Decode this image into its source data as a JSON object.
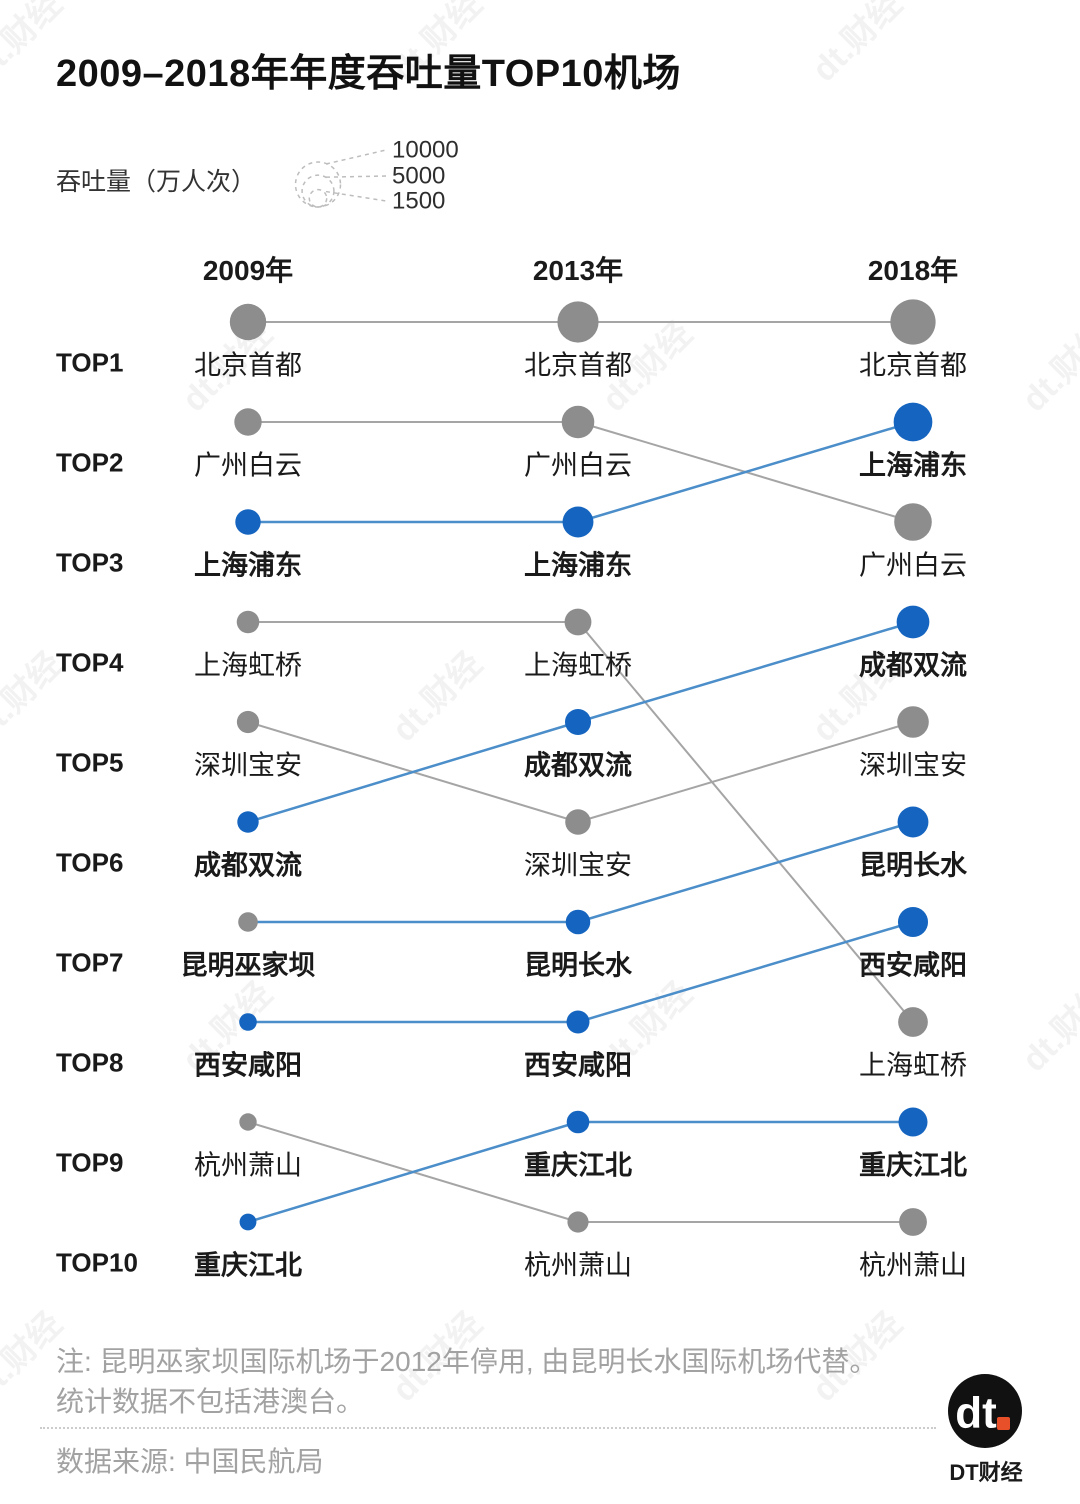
{
  "title": "2009–2018年年度吞吐量TOP10机场",
  "watermark_text": "dt.财经",
  "colors": {
    "dot_blue": "#1565c0",
    "dot_gray": "#8d8d8d",
    "line_blue": "#4b8ec9",
    "line_gray": "#a5a5a5",
    "text_dark": "#1a1a1a",
    "text_muted": "#a2a2a2",
    "legend_stroke": "#bdbdbd",
    "logo_orange": "#e8502a"
  },
  "chart_data": {
    "type": "scatter",
    "subtype": "bump-rank-chart",
    "title": "2009–2018年年度吞吐量TOP10机场",
    "size_legend": {
      "label": "吞吐量（万人次）",
      "values": [
        10000,
        5000,
        1500
      ]
    },
    "columns": [
      "2009年",
      "2013年",
      "2018年"
    ],
    "rank_labels": [
      "TOP1",
      "TOP2",
      "TOP3",
      "TOP4",
      "TOP5",
      "TOP6",
      "TOP7",
      "TOP8",
      "TOP9",
      "TOP10"
    ],
    "series": [
      {
        "key": "beijing-capital",
        "names": [
          "北京首都",
          "北京首都",
          "北京首都"
        ],
        "ranks": [
          1,
          1,
          1
        ],
        "values": [
          6537,
          8371,
          10098
        ],
        "color": "gray"
      },
      {
        "key": "guangzhou-baiyun",
        "names": [
          "广州白云",
          "广州白云",
          "广州白云"
        ],
        "ranks": [
          2,
          2,
          3
        ],
        "values": [
          3705,
          5245,
          6974
        ],
        "color": "gray"
      },
      {
        "key": "shanghai-pudong",
        "names": [
          "上海浦东",
          "上海浦东",
          "上海浦东"
        ],
        "ranks": [
          3,
          3,
          2
        ],
        "values": [
          3192,
          4719,
          7405
        ],
        "color": "blue"
      },
      {
        "key": "shanghai-hongqiao",
        "names": [
          "上海虹桥",
          "上海虹桥",
          "上海虹桥"
        ],
        "ranks": [
          4,
          4,
          8
        ],
        "values": [
          2508,
          3560,
          4363
        ],
        "color": "gray"
      },
      {
        "key": "shenzhen-baoan",
        "names": [
          "深圳宝安",
          "深圳宝安",
          "深圳宝安"
        ],
        "ranks": [
          5,
          6,
          5
        ],
        "values": [
          2448,
          3227,
          4935
        ],
        "color": "gray"
      },
      {
        "key": "chengdu-shuangliu",
        "names": [
          "成都双流",
          "成都双流",
          "成都双流"
        ],
        "ranks": [
          6,
          5,
          4
        ],
        "values": [
          2263,
          3345,
          5295
        ],
        "color": "blue"
      },
      {
        "key": "kunming",
        "names": [
          "昆明巫家坝",
          "昆明长水",
          "昆明长水"
        ],
        "ranks": [
          7,
          7,
          6
        ],
        "values": [
          1894,
          2969,
          4709
        ],
        "color": "blue",
        "dot_colors": [
          "gray",
          "blue",
          "blue"
        ]
      },
      {
        "key": "xian-xianyang",
        "names": [
          "西安咸阳",
          "西安咸阳",
          "西安咸阳"
        ],
        "ranks": [
          8,
          8,
          7
        ],
        "values": [
          1529,
          2604,
          4465
        ],
        "color": "blue"
      },
      {
        "key": "hangzhou-xiaoshan",
        "names": [
          "杭州萧山",
          "杭州萧山",
          "杭州萧山"
        ],
        "ranks": [
          9,
          10,
          10
        ],
        "values": [
          1494,
          2211,
          3824
        ],
        "color": "gray"
      },
      {
        "key": "chongqing-jiangbei",
        "names": [
          "重庆江北",
          "重庆江北",
          "重庆江北"
        ],
        "ranks": [
          10,
          9,
          9
        ],
        "values": [
          1403,
          2527,
          4160
        ],
        "color": "blue"
      }
    ]
  },
  "footer": {
    "note_lines": [
      "注: 昆明巫家坝国际机场于2012年停用, 由昆明长水国际机场代替。",
      "统计数据不包括港澳台。"
    ],
    "source": "数据来源: 中国民航局",
    "logo_text": "dt",
    "logo_caption": "DT财经"
  }
}
